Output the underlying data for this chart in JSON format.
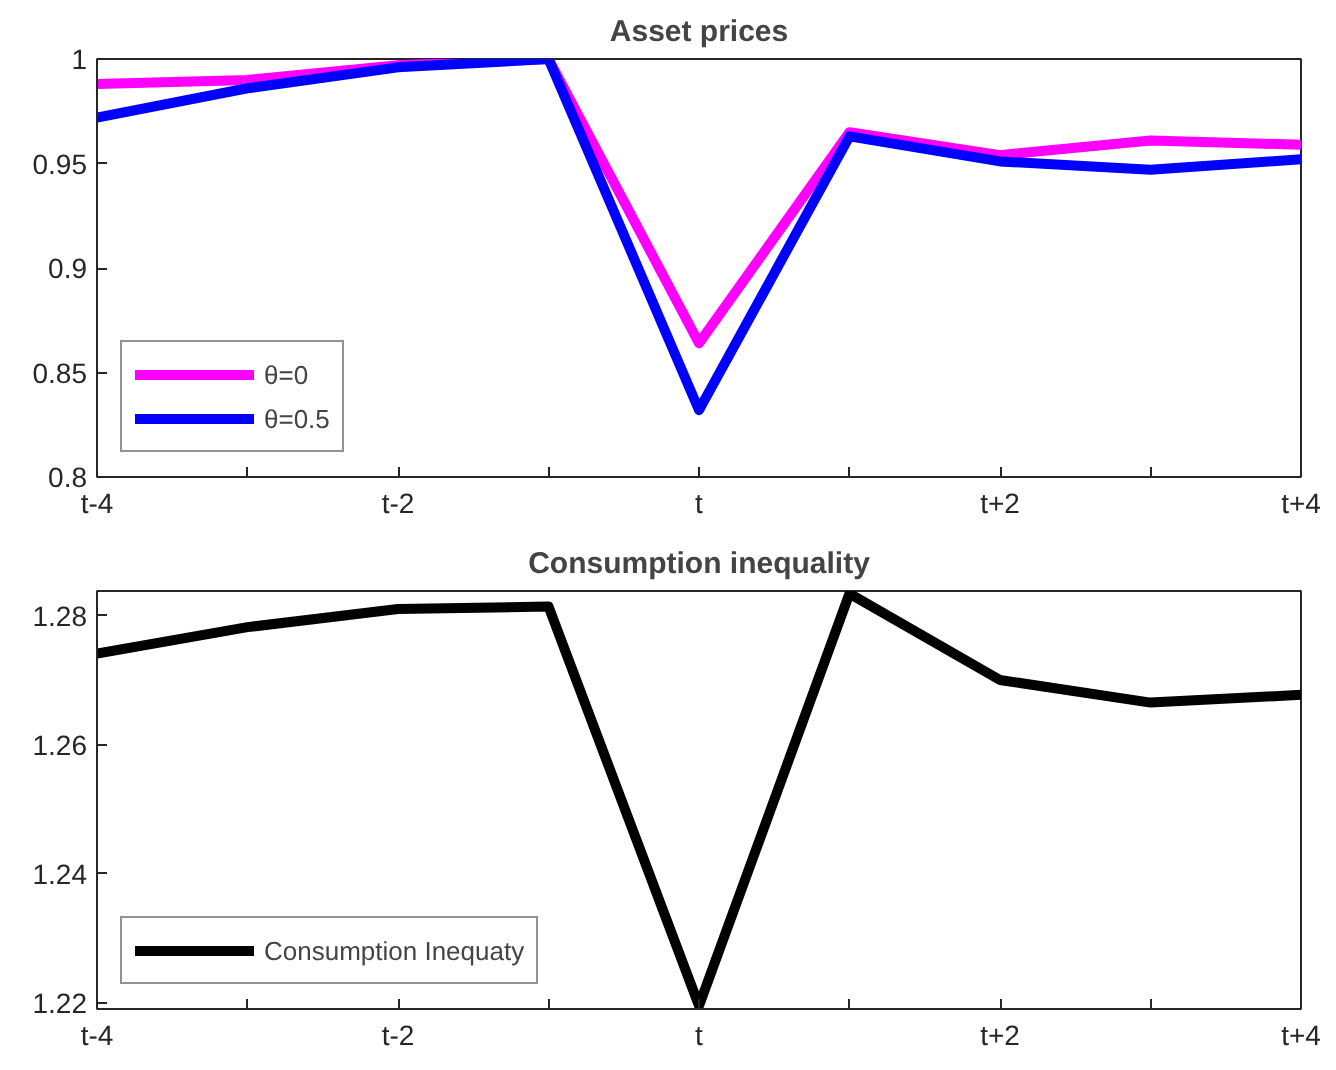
{
  "chart_data": [
    {
      "type": "line",
      "title": "Asset prices",
      "categories": [
        "t-4",
        null,
        "t-2",
        null,
        "t",
        null,
        "t+2",
        null,
        "t+4"
      ],
      "ylim": [
        0.8,
        1
      ],
      "yticks": [
        0.8,
        0.85,
        0.9,
        0.95,
        1
      ],
      "grid": false,
      "legend": "bottom left",
      "marker": "none",
      "line_style": "solid",
      "series": [
        {
          "name": "θ=0",
          "color": "#ff00ff",
          "values": [
            0.988,
            0.99,
            0.997,
            1.0,
            0.864,
            0.965,
            0.954,
            0.961,
            0.959
          ]
        },
        {
          "name": "θ=0.5",
          "color": "#0000ff",
          "values": [
            0.972,
            0.986,
            0.996,
            1.0,
            0.832,
            0.963,
            0.951,
            0.947,
            0.952
          ]
        }
      ]
    },
    {
      "type": "line",
      "title": "Consumption inequality",
      "categories": [
        "t-4",
        null,
        "t-2",
        null,
        "t",
        null,
        "t+2",
        null,
        "t+4"
      ],
      "ylim": [
        1.219,
        1.2838
      ],
      "yticks": [
        1.22,
        1.24,
        1.26,
        1.28
      ],
      "grid": false,
      "legend": "bottom left",
      "marker": "none",
      "line_style": "solid",
      "series": [
        {
          "name": "Consumption Inequaty",
          "color": "#000000",
          "values": [
            1.2741,
            1.2782,
            1.281,
            1.2814,
            1.2195,
            1.2834,
            1.27,
            1.2665,
            1.2677
          ]
        }
      ]
    }
  ]
}
